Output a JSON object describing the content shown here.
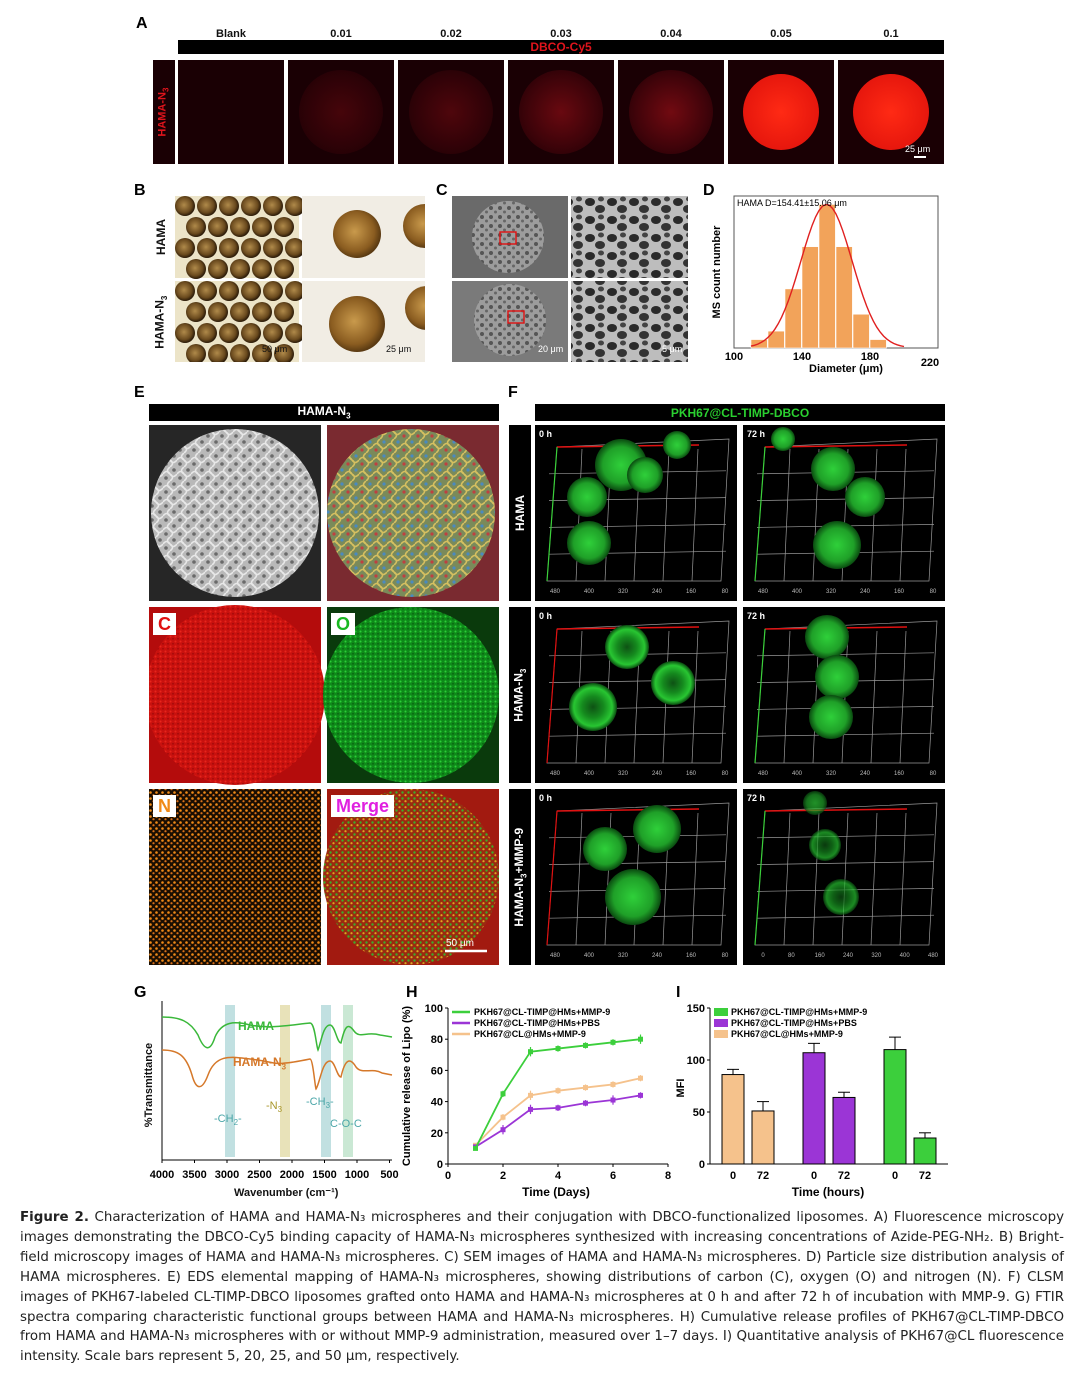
{
  "panelA": {
    "letter": "A",
    "concentrations": [
      "Blank",
      "0.01",
      "0.02",
      "0.03",
      "0.04",
      "0.05",
      "0.1"
    ],
    "bar_label": "DBCO-Cy5",
    "row_label": "HAMA-N3",
    "scale": "25 μm",
    "intensity": [
      0.0,
      0.25,
      0.3,
      0.45,
      0.5,
      1.0,
      1.0
    ]
  },
  "panelB": {
    "letter": "B",
    "rows": [
      "HAMA",
      "HAMA-N3"
    ],
    "scale_left": "50 μm",
    "scale_right": "25 μm"
  },
  "panelC": {
    "letter": "C",
    "scale_left": "20 μm",
    "scale_right": "5 μm"
  },
  "panelD": {
    "letter": "D",
    "chart_data": {
      "type": "bar",
      "annotation": "HAMA D=154.41±15.06 μm",
      "xlabel": "Diameter (μm)",
      "ylabel": "MS count number",
      "xticks": [
        "100",
        "140",
        "180",
        "220"
      ],
      "bin_centers": [
        115,
        125,
        135,
        145,
        155,
        165,
        175,
        185
      ],
      "values": [
        1,
        2,
        7,
        12,
        17,
        12,
        4,
        1
      ]
    }
  },
  "panelE": {
    "letter": "E",
    "bar_label": "HAMA-N3",
    "tags": [
      "C",
      "O",
      "N",
      "Merge"
    ],
    "scale": "50 μm"
  },
  "panelF": {
    "letter": "F",
    "bar_label": "PKH67@CL-TIMP-DBCO",
    "rows": [
      "HAMA",
      "HAMA-N3",
      "HAMA-N3+MMP-9"
    ],
    "times": [
      "0 h",
      "72 h"
    ],
    "axis_ticks": [
      "480",
      "400",
      "320",
      "240",
      "160",
      "80"
    ],
    "axis_ticks_rev": [
      "0",
      "80",
      "160",
      "240",
      "320",
      "400",
      "480"
    ]
  },
  "panelG": {
    "letter": "G",
    "chart_data": {
      "type": "line",
      "ylabel": "%Transmittance",
      "xlabel": "Wavenumber (cm⁻¹)",
      "xticks": [
        "4000",
        "3500",
        "3000",
        "2500",
        "2000",
        "1500",
        "1000",
        "500"
      ],
      "series": [
        {
          "name": "HAMA"
        },
        {
          "name": "HAMA-N3"
        }
      ],
      "annotations": [
        "-CH2-",
        "-N3",
        "-CH3-",
        "C-O-C"
      ]
    }
  },
  "panelH": {
    "letter": "H",
    "chart_data": {
      "type": "line",
      "xlabel": "Time (Days)",
      "ylabel": "Cumulative release of Lipo (%)",
      "xlim": [
        0,
        8
      ],
      "ylim": [
        0,
        100
      ],
      "xticks": [
        "0",
        "2",
        "4",
        "6",
        "8"
      ],
      "yticks": [
        "0",
        "20",
        "40",
        "60",
        "80",
        "100"
      ],
      "x": [
        1,
        2,
        3,
        4,
        5,
        6,
        7
      ],
      "series": [
        {
          "name": "PKH67@CL-TIMP@HMs+MMP-9",
          "color": "#3ccf3c",
          "values": [
            10,
            45,
            72,
            74,
            76,
            78,
            80
          ],
          "err": [
            1,
            2,
            3,
            2,
            2,
            2,
            3
          ]
        },
        {
          "name": "PKH67@CL-TIMP@HMs+PBS",
          "color": "#9b35d6",
          "values": [
            11,
            22,
            35,
            36,
            39,
            41,
            44
          ],
          "err": [
            1,
            3,
            3,
            2,
            2,
            3,
            2
          ]
        },
        {
          "name": "PKH67@CL@HMs+MMP-9",
          "color": "#f5c28c",
          "values": [
            12,
            30,
            44,
            47,
            49,
            51,
            55
          ],
          "err": [
            1,
            2,
            3,
            2,
            2,
            2,
            2
          ]
        }
      ]
    }
  },
  "panelI": {
    "letter": "I",
    "chart_data": {
      "type": "bar",
      "xlabel": "Time (hours)",
      "ylabel": "MFI",
      "ylim": [
        0,
        150
      ],
      "yticks": [
        "0",
        "50",
        "100",
        "150"
      ],
      "categories": [
        "0",
        "72",
        "0",
        "72",
        "0",
        "72"
      ],
      "series": [
        {
          "name": "PKH67@CL-TIMP@HMs+MMP-9",
          "color": "#3ccf3c"
        },
        {
          "name": "PKH67@CL-TIMP@HMs+PBS",
          "color": "#9b35d6"
        },
        {
          "name": "PKH67@CL@HMs+MMP-9",
          "color": "#f5c28c"
        }
      ],
      "bars": [
        {
          "group": 2,
          "value": 86,
          "err": 5
        },
        {
          "group": 2,
          "value": 51,
          "err": 9
        },
        {
          "group": 1,
          "value": 107,
          "err": 9
        },
        {
          "group": 1,
          "value": 64,
          "err": 5
        },
        {
          "group": 0,
          "value": 110,
          "err": 12
        },
        {
          "group": 0,
          "value": 25,
          "err": 5
        }
      ]
    }
  },
  "caption": {
    "fig_label": "Figure 2.",
    "text": "Characterization of HAMA and HAMA-N₃ microspheres and their conjugation with DBCO-functionalized liposomes. A) Fluorescence microscopy images demonstrating the DBCO-Cy5 binding capacity of HAMA-N₃ microspheres synthesized with increasing concentrations of Azide-PEG-NH₂. B) Bright-field microscopy images of HAMA and HAMA-N₃ microspheres. C) SEM images of HAMA and HAMA-N₃ microspheres. D) Particle size distribution analysis of HAMA microspheres. E) EDS elemental mapping of HAMA-N₃ microspheres, showing distributions of carbon (C), oxygen (O) and nitrogen (N). F) CLSM images of PKH67-labeled CL-TIMP-DBCO liposomes grafted onto HAMA and HAMA-N₃ microspheres at 0 h and after 72 h of incubation with MMP-9. G) FTIR spectra comparing characteristic functional groups between HAMA and HAMA-N₃ microspheres. H) Cumulative release profiles of PKH67@CL-TIMP-DBCO from HAMA and HAMA-N₃ microspheres with or without MMP-9 administration, measured over 1–7 days. I) Quantitative analysis of PKH67@CL fluorescence intensity. Scale bars represent 5, 20, 25, and 50 μm, respectively."
  }
}
